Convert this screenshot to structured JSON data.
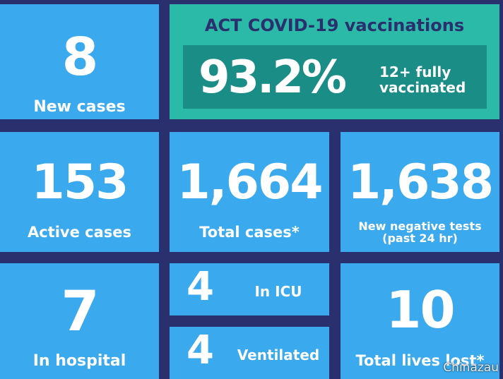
{
  "tiles": {
    "new_cases": {
      "value": "8",
      "label": "New cases"
    },
    "vaccinations": {
      "title": "ACT COVID-19 vaccinations",
      "value": "93.2%",
      "label_line1": "12+ fully",
      "label_line2": "vaccinated"
    },
    "active_cases": {
      "value": "153",
      "label": "Active cases"
    },
    "total_cases": {
      "value": "1,664",
      "label": "Total cases*"
    },
    "negative_tests": {
      "value": "1,638",
      "label_line1": "New negative tests",
      "label_line2": "(past 24 hr)"
    },
    "in_hospital": {
      "value": "7",
      "label": "In hospital"
    },
    "in_icu": {
      "value": "4",
      "label": "In ICU"
    },
    "ventilated": {
      "value": "4",
      "label": "Ventilated"
    },
    "lives_lost": {
      "value": "10",
      "label": "Total lives lost*"
    }
  },
  "watermark": "Chinazau",
  "colors": {
    "background": "#2a2f6e",
    "tile": "#3aa9ee",
    "vax_tile": "#2bb9a8",
    "vax_box": "#1a8d87"
  }
}
